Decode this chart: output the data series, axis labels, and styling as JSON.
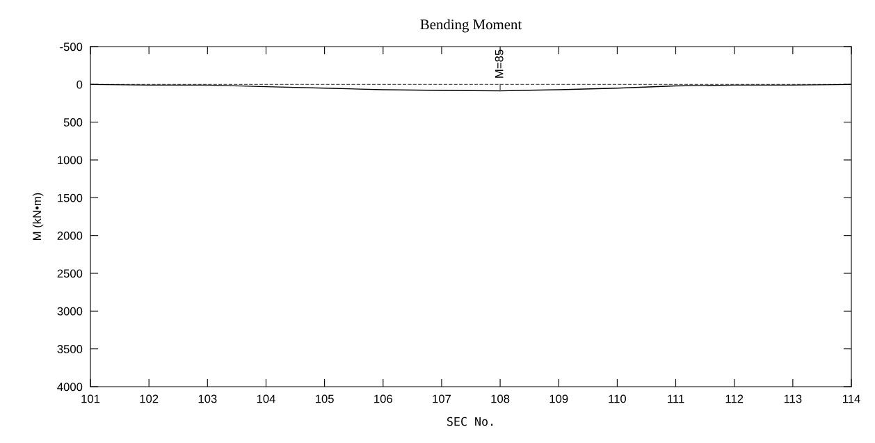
{
  "chart_data": {
    "type": "line",
    "title": "Bending Moment",
    "xlabel": "SEC No.",
    "ylabel": "M (kN•m)",
    "categories": [
      "101",
      "102",
      "103",
      "104",
      "105",
      "106",
      "107",
      "108",
      "109",
      "110",
      "111",
      "112",
      "113",
      "114"
    ],
    "series": [
      {
        "color": "#000000",
        "values": [
          0,
          10,
          10,
          30,
          50,
          70,
          80,
          85,
          70,
          50,
          20,
          10,
          10,
          0
        ]
      }
    ],
    "ylim": [
      4000,
      -500
    ],
    "yticks": [
      -500,
      0,
      500,
      1000,
      1500,
      2000,
      2500,
      3000,
      3500,
      4000
    ],
    "ref_lines": [
      {
        "axis": "y",
        "value": 0,
        "color": "#555555",
        "line_style": "dashed"
      }
    ],
    "annotations": [
      {
        "text": "M=85",
        "x": "108",
        "y": 85
      }
    ],
    "grid": false,
    "legend": false,
    "marker": "none",
    "line_style": "solid"
  }
}
